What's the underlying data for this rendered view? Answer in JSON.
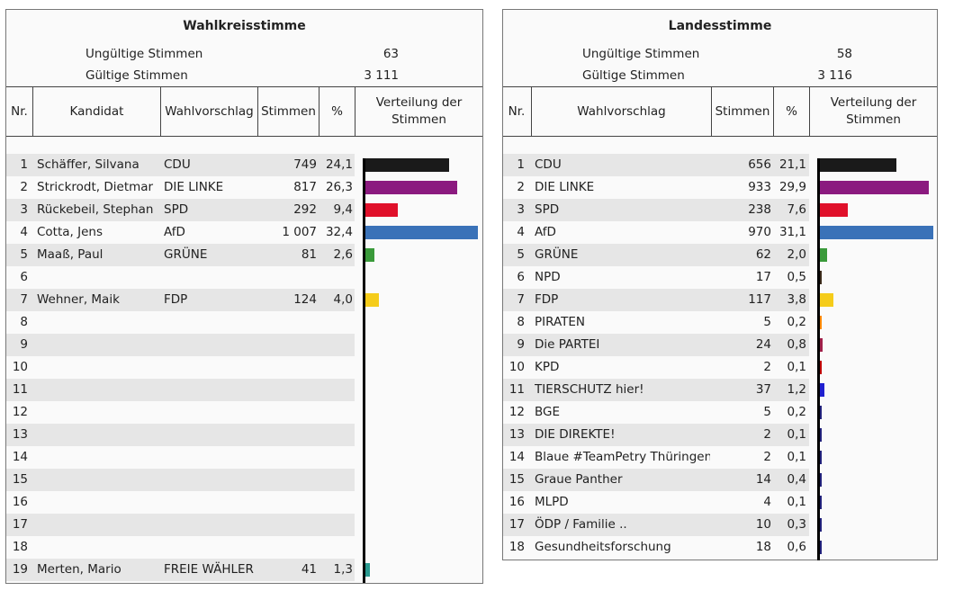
{
  "left": {
    "title": "Wahlkreisstimme",
    "invalid_label": "Ungültige Stimmen",
    "invalid_value": "63",
    "valid_label": "Gültige Stimmen",
    "valid_value": "3 111",
    "headers": {
      "nr": "Nr.",
      "candidate": "Kandidat",
      "party": "Wahlvorschlag",
      "votes": "Stimmen",
      "pct": "%",
      "dist": "Verteilung der Stimmen"
    },
    "rows": [
      {
        "nr": "1",
        "candidate": "Schäffer, Silvana",
        "party": "CDU",
        "votes": "749",
        "pct": "24,1",
        "value": 24.1,
        "color": "#1a1a1a"
      },
      {
        "nr": "2",
        "candidate": "Strickrodt, Dietmar",
        "party": "DIE LINKE",
        "votes": "817",
        "pct": "26,3",
        "value": 26.3,
        "color": "#8b1a7f"
      },
      {
        "nr": "3",
        "candidate": "Rückebeil, Stephan",
        "party": "SPD",
        "votes": "292",
        "pct": "9,4",
        "value": 9.4,
        "color": "#e0102a"
      },
      {
        "nr": "4",
        "candidate": "Cotta, Jens",
        "party": "AfD",
        "votes": "1 007",
        "pct": "32,4",
        "value": 32.4,
        "color": "#3a72b8"
      },
      {
        "nr": "5",
        "candidate": "Maaß, Paul",
        "party": "GRÜNE",
        "votes": "81",
        "pct": "2,6",
        "value": 2.6,
        "color": "#3a9a3a"
      },
      {
        "nr": "6",
        "candidate": "",
        "party": "",
        "votes": "",
        "pct": "",
        "value": 0,
        "color": ""
      },
      {
        "nr": "7",
        "candidate": "Wehner, Maik",
        "party": "FDP",
        "votes": "124",
        "pct": "4,0",
        "value": 4.0,
        "color": "#f5cc1a"
      },
      {
        "nr": "8",
        "candidate": "",
        "party": "",
        "votes": "",
        "pct": "",
        "value": 0,
        "color": ""
      },
      {
        "nr": "9",
        "candidate": "",
        "party": "",
        "votes": "",
        "pct": "",
        "value": 0,
        "color": ""
      },
      {
        "nr": "10",
        "candidate": "",
        "party": "",
        "votes": "",
        "pct": "",
        "value": 0,
        "color": ""
      },
      {
        "nr": "11",
        "candidate": "",
        "party": "",
        "votes": "",
        "pct": "",
        "value": 0,
        "color": ""
      },
      {
        "nr": "12",
        "candidate": "",
        "party": "",
        "votes": "",
        "pct": "",
        "value": 0,
        "color": ""
      },
      {
        "nr": "13",
        "candidate": "",
        "party": "",
        "votes": "",
        "pct": "",
        "value": 0,
        "color": ""
      },
      {
        "nr": "14",
        "candidate": "",
        "party": "",
        "votes": "",
        "pct": "",
        "value": 0,
        "color": ""
      },
      {
        "nr": "15",
        "candidate": "",
        "party": "",
        "votes": "",
        "pct": "",
        "value": 0,
        "color": ""
      },
      {
        "nr": "16",
        "candidate": "",
        "party": "",
        "votes": "",
        "pct": "",
        "value": 0,
        "color": ""
      },
      {
        "nr": "17",
        "candidate": "",
        "party": "",
        "votes": "",
        "pct": "",
        "value": 0,
        "color": ""
      },
      {
        "nr": "18",
        "candidate": "",
        "party": "",
        "votes": "",
        "pct": "",
        "value": 0,
        "color": ""
      },
      {
        "nr": "19",
        "candidate": "Merten, Mario",
        "party": "FREIE WÄHLER",
        "votes": "41",
        "pct": "1,3",
        "value": 1.3,
        "color": "#2a9a90"
      }
    ]
  },
  "right": {
    "title": "Landesstimme",
    "invalid_label": "Ungültige Stimmen",
    "invalid_value": "58",
    "valid_label": "Gültige Stimmen",
    "valid_value": "3 116",
    "headers": {
      "nr": "Nr.",
      "party": "Wahlvorschlag",
      "votes": "Stimmen",
      "pct": "%",
      "dist": "Verteilung der Stimmen"
    },
    "rows": [
      {
        "nr": "1",
        "party": "CDU",
        "votes": "656",
        "pct": "21,1",
        "value": 21.1,
        "color": "#1a1a1a"
      },
      {
        "nr": "2",
        "party": "DIE LINKE",
        "votes": "933",
        "pct": "29,9",
        "value": 29.9,
        "color": "#8b1a7f"
      },
      {
        "nr": "3",
        "party": "SPD",
        "votes": "238",
        "pct": "7,6",
        "value": 7.6,
        "color": "#e0102a"
      },
      {
        "nr": "4",
        "party": "AfD",
        "votes": "970",
        "pct": "31,1",
        "value": 31.1,
        "color": "#3a72b8"
      },
      {
        "nr": "5",
        "party": "GRÜNE",
        "votes": "62",
        "pct": "2,0",
        "value": 2.0,
        "color": "#3a9a3a"
      },
      {
        "nr": "6",
        "party": "NPD",
        "votes": "17",
        "pct": "0,5",
        "value": 0.5,
        "color": "#3a2a1a"
      },
      {
        "nr": "7",
        "party": "FDP",
        "votes": "117",
        "pct": "3,8",
        "value": 3.8,
        "color": "#f5cc1a"
      },
      {
        "nr": "8",
        "party": "PIRATEN",
        "votes": "5",
        "pct": "0,2",
        "value": 0.2,
        "color": "#ff8800"
      },
      {
        "nr": "9",
        "party": "Die PARTEI",
        "votes": "24",
        "pct": "0,8",
        "value": 0.8,
        "color": "#a0204a"
      },
      {
        "nr": "10",
        "party": "KPD",
        "votes": "2",
        "pct": "0,1",
        "value": 0.1,
        "color": "#c00000"
      },
      {
        "nr": "11",
        "party": "TIERSCHUTZ hier!",
        "votes": "37",
        "pct": "1,2",
        "value": 1.2,
        "color": "#2020d0"
      },
      {
        "nr": "12",
        "party": "BGE",
        "votes": "5",
        "pct": "0,2",
        "value": 0.2,
        "color": "#20207a"
      },
      {
        "nr": "13",
        "party": "DIE DIREKTE!",
        "votes": "2",
        "pct": "0,1",
        "value": 0.1,
        "color": "#20207a"
      },
      {
        "nr": "14",
        "party": "Blaue #TeamPetry Thüringen",
        "votes": "2",
        "pct": "0,1",
        "value": 0.1,
        "color": "#20207a"
      },
      {
        "nr": "15",
        "party": "Graue Panther",
        "votes": "14",
        "pct": "0,4",
        "value": 0.4,
        "color": "#20207a"
      },
      {
        "nr": "16",
        "party": "MLPD",
        "votes": "4",
        "pct": "0,1",
        "value": 0.1,
        "color": "#20207a"
      },
      {
        "nr": "17",
        "party": "ÖDP / Familie ..",
        "votes": "10",
        "pct": "0,3",
        "value": 0.3,
        "color": "#20207a"
      },
      {
        "nr": "18",
        "party": "Gesundheitsforschung",
        "votes": "18",
        "pct": "0,6",
        "value": 0.6,
        "color": "#20207a"
      }
    ]
  }
}
